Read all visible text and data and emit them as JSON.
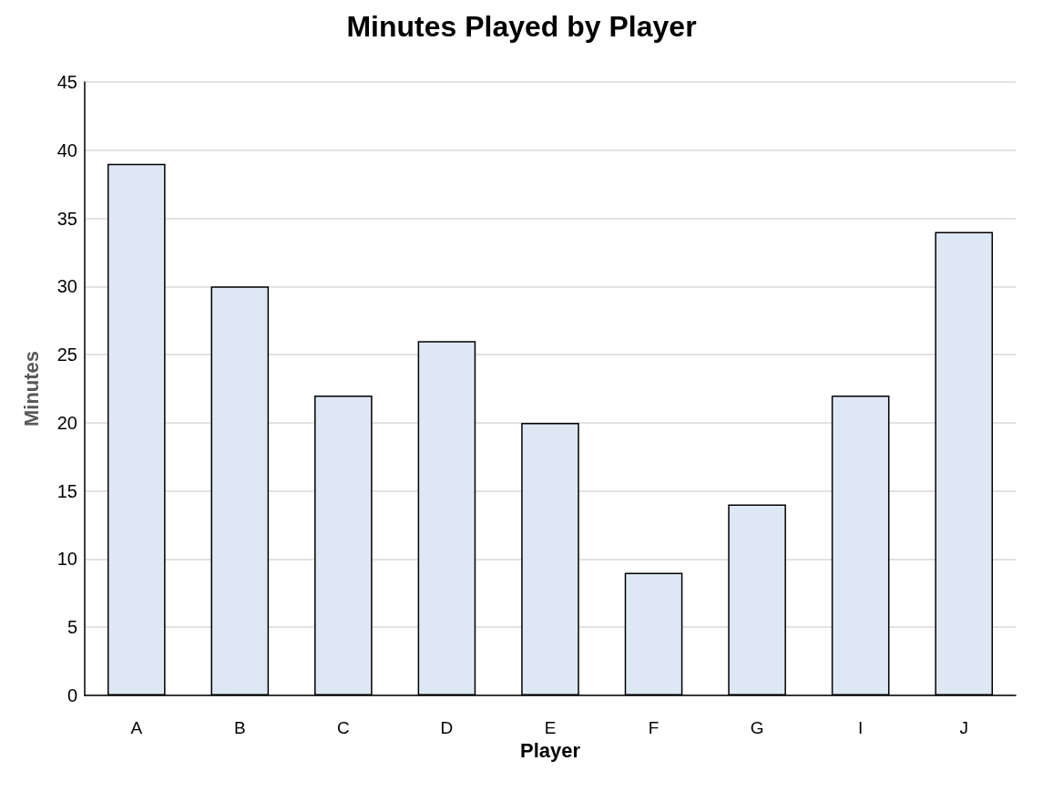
{
  "chart_data": {
    "type": "bar",
    "title": "Minutes Played by Player",
    "xlabel": "Player",
    "ylabel": "Minutes",
    "categories": [
      "A",
      "B",
      "C",
      "D",
      "E",
      "F",
      "G",
      "I",
      "J"
    ],
    "values": [
      39,
      30,
      22,
      26,
      20,
      9,
      14,
      22,
      34
    ],
    "color": "#dee8f5",
    "ylim": [
      0,
      45
    ],
    "yticks": [
      0,
      5,
      10,
      15,
      20,
      25,
      30,
      35,
      40,
      45
    ],
    "grid": "y"
  }
}
